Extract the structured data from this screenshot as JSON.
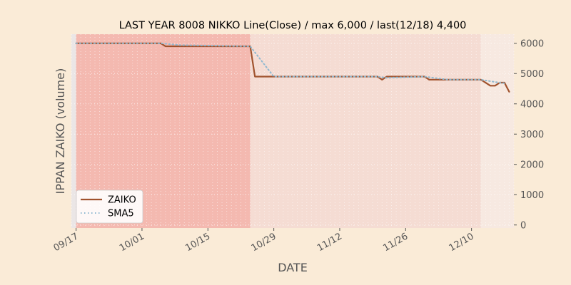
{
  "chart_data": {
    "type": "line",
    "title": "LAST YEAR 8008 NIKKO Line(Close) / max 6,000 / last(12/18) 4,400",
    "xlabel": "DATE",
    "ylabel": "IPPAN ZAIKO (volume)",
    "ylim": [
      -100,
      6300
    ],
    "yticks": [
      0,
      1000,
      2000,
      3000,
      4000,
      5000,
      6000
    ],
    "ytick_labels": [
      "0",
      "1000",
      "2000",
      "3000",
      "4000",
      "5000",
      "6000"
    ],
    "xlim": [
      "2023-09-16",
      "2023-12-19"
    ],
    "xticks": [
      "2023-09-17",
      "2023-10-01",
      "2023-10-15",
      "2023-10-29",
      "2023-11-12",
      "2023-11-26",
      "2023-12-10"
    ],
    "xtick_labels": [
      "09/17",
      "10/01",
      "10/15",
      "10/29",
      "11/12",
      "11/26",
      "12/10"
    ],
    "y_axis_side": "right",
    "grid": true,
    "legend": "lower-left",
    "shaded_regions": [
      {
        "start": "2023-09-17",
        "end": "2023-10-24",
        "color": "#F4B9B0"
      },
      {
        "start": "2023-10-24",
        "end": "2023-12-12",
        "color": "#F5DCD3"
      },
      {
        "start": "2023-12-12",
        "end": "2023-12-19",
        "color": "#F7E9E1"
      }
    ],
    "series": [
      {
        "name": "ZAIKO",
        "color": "#A0522D",
        "style": "solid",
        "points": [
          [
            "2023-09-17",
            6000
          ],
          [
            "2023-10-05",
            6000
          ],
          [
            "2023-10-06",
            5900
          ],
          [
            "2023-10-24",
            5900
          ],
          [
            "2023-10-25",
            4900
          ],
          [
            "2023-11-20",
            4900
          ],
          [
            "2023-11-21",
            4800
          ],
          [
            "2023-11-22",
            4900
          ],
          [
            "2023-11-30",
            4900
          ],
          [
            "2023-12-01",
            4800
          ],
          [
            "2023-12-12",
            4800
          ],
          [
            "2023-12-14",
            4600
          ],
          [
            "2023-12-15",
            4600
          ],
          [
            "2023-12-16",
            4700
          ],
          [
            "2023-12-17",
            4700
          ],
          [
            "2023-12-18",
            4400
          ]
        ]
      },
      {
        "name": "SMA5",
        "color": "#8FB8D0",
        "style": "dotted",
        "points": [
          [
            "2023-09-17",
            6000
          ],
          [
            "2023-10-05",
            6000
          ],
          [
            "2023-10-09",
            5940
          ],
          [
            "2023-10-24",
            5900
          ],
          [
            "2023-10-29",
            4900
          ],
          [
            "2023-11-20",
            4900
          ],
          [
            "2023-11-22",
            4860
          ],
          [
            "2023-11-30",
            4900
          ],
          [
            "2023-12-01",
            4880
          ],
          [
            "2023-12-05",
            4800
          ],
          [
            "2023-12-12",
            4800
          ],
          [
            "2023-12-15",
            4720
          ],
          [
            "2023-12-17",
            4680
          ]
        ]
      }
    ]
  }
}
